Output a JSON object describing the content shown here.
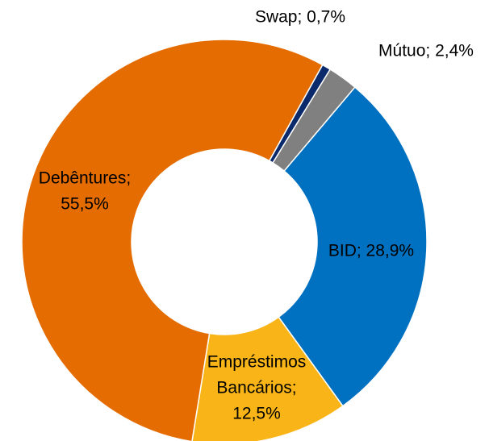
{
  "chart_data": {
    "type": "donut",
    "labels": [
      [
        "Swap; 0,7%"
      ],
      [
        "Mútuo; 2,4%"
      ],
      [
        "BID; 28,9%"
      ],
      [
        "Empréstimos",
        "Bancários;",
        "12,5%"
      ],
      [
        "Debêntures;",
        "55,5%"
      ]
    ],
    "values": [
      0.7,
      2.4,
      28.9,
      12.5,
      55.5
    ],
    "colors": [
      "#0b2a6b",
      "#808080",
      "#0070c0",
      "#f9b418",
      "#e46c00"
    ]
  }
}
